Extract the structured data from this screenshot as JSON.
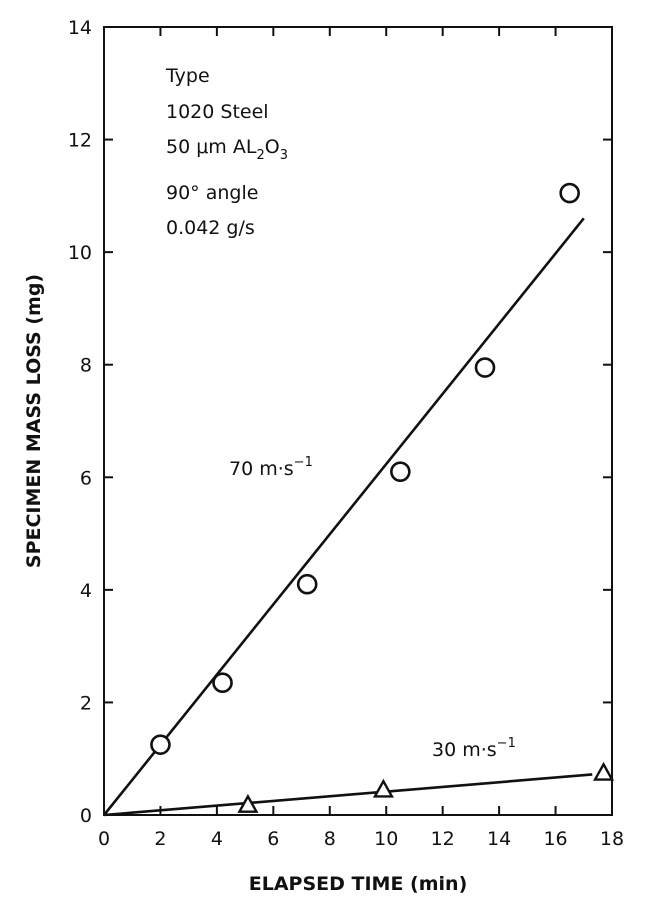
{
  "chart_data": {
    "type": "scatter",
    "xlabel": "ELAPSED TIME (min)",
    "ylabel": "SPECIMEN MASS LOSS (mg)",
    "xlim": [
      0,
      18
    ],
    "ylim": [
      0,
      14
    ],
    "x_ticks": [
      0,
      2,
      4,
      6,
      8,
      10,
      12,
      14,
      16,
      18
    ],
    "y_ticks": [
      0,
      2,
      4,
      6,
      8,
      10,
      12,
      14
    ],
    "grid": false,
    "annotation_block": {
      "line1": "Type",
      "line2": "1020 Steel",
      "line3_prefix": "50 μm AL",
      "line3_sub1": "2",
      "line3_mid": "O",
      "line3_sub2": "3",
      "line4": "90° angle",
      "line5": "0.042 g/s"
    },
    "series": [
      {
        "label_text": "70 m·s",
        "label_sup": "−1",
        "marker": "circle",
        "points": [
          {
            "x": 2.0,
            "y": 1.25
          },
          {
            "x": 4.2,
            "y": 2.35
          },
          {
            "x": 7.2,
            "y": 4.1
          },
          {
            "x": 10.5,
            "y": 6.1
          },
          {
            "x": 13.5,
            "y": 7.95
          },
          {
            "x": 16.5,
            "y": 11.05
          }
        ],
        "fit_line": {
          "x0": 0,
          "y0": 0,
          "x1": 17.0,
          "y1": 10.6
        }
      },
      {
        "label_text": "30 m·s",
        "label_sup": "−1",
        "marker": "triangle",
        "points": [
          {
            "x": 5.1,
            "y": 0.18
          },
          {
            "x": 9.9,
            "y": 0.45
          },
          {
            "x": 17.7,
            "y": 0.75
          }
        ],
        "fit_line": {
          "x0": 0,
          "y0": 0,
          "x1": 17.3,
          "y1": 0.72
        }
      }
    ]
  }
}
